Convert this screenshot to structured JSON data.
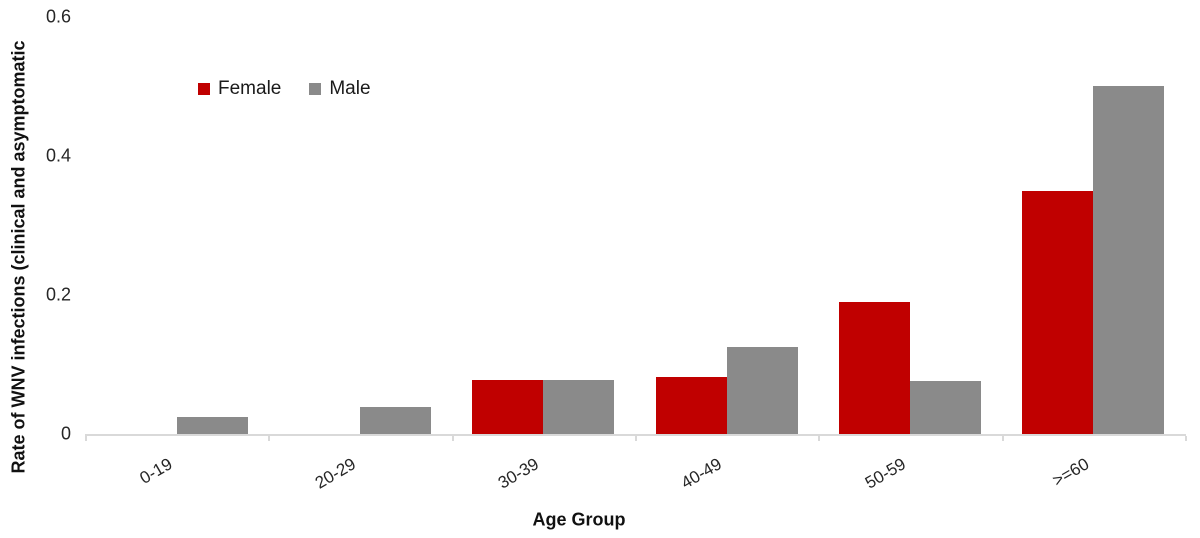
{
  "chart_data": {
    "type": "bar",
    "title": "",
    "categories": [
      "0-19",
      "20-29",
      "30-39",
      "40-49",
      "50-59",
      ">=60"
    ],
    "series": [
      {
        "name": "Female",
        "color": "#c00000",
        "values": [
          0,
          0,
          0.078,
          0.082,
          0.19,
          0.35
        ]
      },
      {
        "name": "Male",
        "color": "#8a8a8a",
        "values": [
          0.025,
          0.039,
          0.078,
          0.125,
          0.076,
          0.5
        ]
      }
    ],
    "xlabel": "Age Group",
    "ylabel": "Rate of WNV infections (clinical and asymptomatic",
    "ylim": [
      0,
      0.6
    ],
    "yticks": [
      0,
      0.2,
      0.4,
      0.6
    ],
    "ytick_labels": [
      "0",
      "0.2",
      "0.4",
      "0.6"
    ],
    "grid": false,
    "legend_position": "inside-top-left",
    "legend": [
      "Female",
      "Male"
    ]
  },
  "colors": {
    "female": "#c00000",
    "male": "#8a8a8a",
    "axis_line": "#d9d9d9",
    "tick_text": "#262626"
  }
}
